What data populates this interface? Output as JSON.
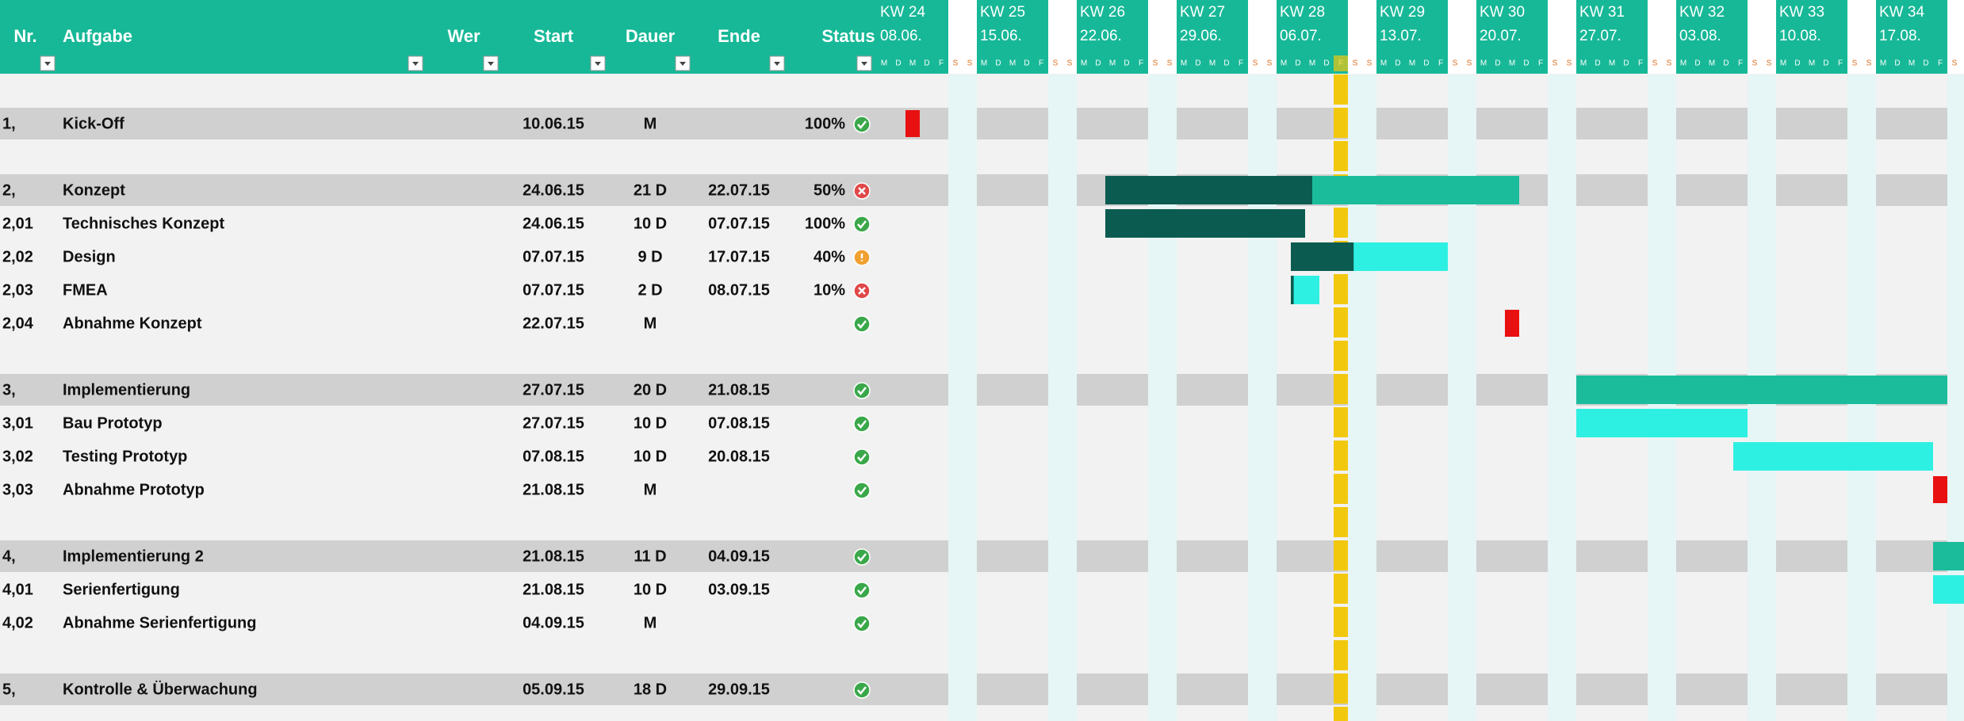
{
  "header": {
    "nr": "Nr.",
    "task": "Aufgabe",
    "who": "Wer",
    "start": "Start",
    "duration": "Dauer",
    "end": "Ende",
    "status": "Status"
  },
  "weeks": [
    {
      "kw": "KW 24",
      "date": "08.06."
    },
    {
      "kw": "KW 25",
      "date": "15.06."
    },
    {
      "kw": "KW 26",
      "date": "22.06."
    },
    {
      "kw": "KW 27",
      "date": "29.06."
    },
    {
      "kw": "KW 28",
      "date": "06.07."
    },
    {
      "kw": "KW 29",
      "date": "13.07."
    },
    {
      "kw": "KW 30",
      "date": "20.07."
    },
    {
      "kw": "KW 31",
      "date": "27.07."
    },
    {
      "kw": "KW 32",
      "date": "03.08."
    },
    {
      "kw": "KW 33",
      "date": "10.08."
    },
    {
      "kw": "KW 34",
      "date": "17.08."
    }
  ],
  "days": [
    "M",
    "D",
    "M",
    "D",
    "F",
    "S",
    "S"
  ],
  "groups": [
    {
      "nr": "1,",
      "task": "Kick-Off",
      "start": "10.06.15",
      "duration": "M",
      "milestone": true,
      "status": {
        "value": 100,
        "label": "100%"
      },
      "icon": "ok",
      "tasks": []
    },
    {
      "nr": "2,",
      "task": "Konzept",
      "start": "24.06.15",
      "duration": "21 D",
      "end": "22.07.15",
      "status": {
        "value": 50,
        "label": "50%"
      },
      "icon": "late",
      "tasks": [
        {
          "nr": "2,01",
          "task": "Technisches Konzept",
          "start": "24.06.15",
          "duration": "10 D",
          "end": "07.07.15",
          "status": {
            "value": 100,
            "label": "100%"
          },
          "icon": "ok"
        },
        {
          "nr": "2,02",
          "task": "Design",
          "start": "07.07.15",
          "duration": "9 D",
          "end": "17.07.15",
          "status": {
            "value": 40,
            "label": "40%"
          },
          "icon": "warn"
        },
        {
          "nr": "2,03",
          "task": "FMEA",
          "start": "07.07.15",
          "duration": "2 D",
          "end": "08.07.15",
          "status": {
            "value": 10,
            "label": "10%"
          },
          "icon": "late"
        },
        {
          "nr": "2,04",
          "task": "Abnahme Konzept",
          "start": "22.07.15",
          "duration": "M",
          "milestone": true,
          "icon": "ok"
        }
      ]
    },
    {
      "nr": "3,",
      "task": "Implementierung",
      "start": "27.07.15",
      "duration": "20 D",
      "end": "21.08.15",
      "icon": "ok",
      "tasks": [
        {
          "nr": "3,01",
          "task": "Bau Prototyp",
          "start": "27.07.15",
          "duration": "10 D",
          "end": "07.08.15",
          "icon": "ok"
        },
        {
          "nr": "3,02",
          "task": "Testing Prototyp",
          "start": "07.08.15",
          "duration": "10 D",
          "end": "20.08.15",
          "icon": "ok"
        },
        {
          "nr": "3,03",
          "task": "Abnahme Prototyp",
          "start": "21.08.15",
          "duration": "M",
          "milestone": true,
          "icon": "ok"
        }
      ]
    },
    {
      "nr": "4,",
      "task": "Implementierung 2",
      "start": "21.08.15",
      "duration": "11 D",
      "end": "04.09.15",
      "icon": "ok",
      "tasks": [
        {
          "nr": "4,01",
          "task": "Serienfertigung",
          "start": "21.08.15",
          "duration": "10 D",
          "end": "03.09.15",
          "icon": "ok"
        },
        {
          "nr": "4,02",
          "task": "Abnahme Serienfertigung",
          "start": "04.09.15",
          "duration": "M",
          "milestone": true,
          "icon": "ok"
        }
      ]
    },
    {
      "nr": "5,",
      "task": "Kontrolle & Überwachung",
      "start": "05.09.15",
      "duration": "18 D",
      "end": "29.09.15",
      "icon": "ok",
      "tasks": []
    }
  ]
}
